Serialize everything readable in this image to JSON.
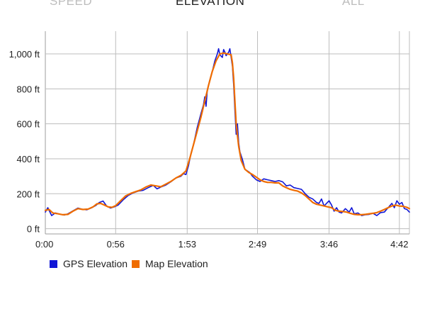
{
  "tabs": [
    {
      "label": "SPEED",
      "active": false
    },
    {
      "label": "ELEVATION",
      "active": true
    },
    {
      "label": "ALL",
      "active": false
    }
  ],
  "chart_data": {
    "type": "line",
    "title": "",
    "xlabel": "",
    "ylabel": "",
    "x_unit": "minutes",
    "xlim": [
      0,
      290
    ],
    "ylim": [
      -30,
      1130
    ],
    "x_ticks": [
      {
        "value": 0,
        "label": "0:00"
      },
      {
        "value": 56,
        "label": "0:56"
      },
      {
        "value": 113,
        "label": "1:53"
      },
      {
        "value": 169,
        "label": "2:49"
      },
      {
        "value": 226,
        "label": "3:46"
      },
      {
        "value": 282,
        "label": "4:42"
      }
    ],
    "y_ticks": [
      {
        "value": 0,
        "label": "0 ft"
      },
      {
        "value": 200,
        "label": "200 ft"
      },
      {
        "value": 400,
        "label": "400 ft"
      },
      {
        "value": 600,
        "label": "600 ft"
      },
      {
        "value": 800,
        "label": "800 ft"
      },
      {
        "value": 1000,
        "label": "1,000 ft"
      }
    ],
    "grid": true,
    "legend_position": "bottom-left",
    "series": [
      {
        "name": "GPS Elevation",
        "color": "#1016d6",
        "points": [
          [
            0,
            95
          ],
          [
            2,
            120
          ],
          [
            5,
            75
          ],
          [
            8,
            90
          ],
          [
            12,
            82
          ],
          [
            15,
            78
          ],
          [
            18,
            85
          ],
          [
            22,
            102
          ],
          [
            26,
            118
          ],
          [
            30,
            110
          ],
          [
            33,
            108
          ],
          [
            37,
            120
          ],
          [
            40,
            132
          ],
          [
            43,
            150
          ],
          [
            46,
            158
          ],
          [
            49,
            128
          ],
          [
            52,
            118
          ],
          [
            55,
            125
          ],
          [
            58,
            135
          ],
          [
            62,
            165
          ],
          [
            66,
            190
          ],
          [
            70,
            205
          ],
          [
            74,
            215
          ],
          [
            78,
            220
          ],
          [
            82,
            235
          ],
          [
            86,
            248
          ],
          [
            89,
            228
          ],
          [
            92,
            238
          ],
          [
            96,
            250
          ],
          [
            100,
            268
          ],
          [
            104,
            290
          ],
          [
            108,
            300
          ],
          [
            110,
            315
          ],
          [
            112,
            310
          ],
          [
            114,
            360
          ],
          [
            116,
            430
          ],
          [
            118,
            480
          ],
          [
            121,
            580
          ],
          [
            124,
            660
          ],
          [
            126,
            710
          ],
          [
            127,
            755
          ],
          [
            128,
            700
          ],
          [
            129,
            790
          ],
          [
            131,
            850
          ],
          [
            133,
            900
          ],
          [
            135,
            960
          ],
          [
            137,
            1000
          ],
          [
            138,
            1030
          ],
          [
            139,
            995
          ],
          [
            141,
            980
          ],
          [
            142,
            1025
          ],
          [
            143,
            1010
          ],
          [
            144,
            990
          ],
          [
            146,
            1010
          ],
          [
            147,
            1030
          ],
          [
            148,
            980
          ],
          [
            149,
            930
          ],
          [
            150,
            820
          ],
          [
            151,
            680
          ],
          [
            152,
            540
          ],
          [
            153,
            600
          ],
          [
            154,
            490
          ],
          [
            155,
            440
          ],
          [
            157,
            395
          ],
          [
            159,
            340
          ],
          [
            161,
            330
          ],
          [
            163,
            320
          ],
          [
            165,
            300
          ],
          [
            168,
            280
          ],
          [
            171,
            270
          ],
          [
            174,
            285
          ],
          [
            177,
            280
          ],
          [
            180,
            275
          ],
          [
            183,
            270
          ],
          [
            186,
            275
          ],
          [
            189,
            268
          ],
          [
            192,
            245
          ],
          [
            195,
            250
          ],
          [
            198,
            235
          ],
          [
            201,
            230
          ],
          [
            204,
            225
          ],
          [
            207,
            200
          ],
          [
            210,
            180
          ],
          [
            213,
            170
          ],
          [
            216,
            150
          ],
          [
            218,
            145
          ],
          [
            220,
            170
          ],
          [
            222,
            130
          ],
          [
            224,
            145
          ],
          [
            226,
            160
          ],
          [
            228,
            135
          ],
          [
            230,
            100
          ],
          [
            232,
            120
          ],
          [
            234,
            95
          ],
          [
            236,
            90
          ],
          [
            239,
            115
          ],
          [
            242,
            95
          ],
          [
            244,
            120
          ],
          [
            246,
            85
          ],
          [
            249,
            90
          ],
          [
            252,
            75
          ],
          [
            255,
            80
          ],
          [
            258,
            82
          ],
          [
            261,
            88
          ],
          [
            264,
            75
          ],
          [
            267,
            92
          ],
          [
            270,
            95
          ],
          [
            273,
            120
          ],
          [
            276,
            145
          ],
          [
            278,
            120
          ],
          [
            280,
            160
          ],
          [
            282,
            140
          ],
          [
            284,
            150
          ],
          [
            286,
            115
          ],
          [
            288,
            110
          ],
          [
            290,
            95
          ]
        ]
      },
      {
        "name": "Map Elevation",
        "color": "#ef6c00",
        "points": [
          [
            0,
            105
          ],
          [
            3,
            110
          ],
          [
            6,
            90
          ],
          [
            10,
            85
          ],
          [
            14,
            80
          ],
          [
            18,
            82
          ],
          [
            22,
            100
          ],
          [
            26,
            115
          ],
          [
            30,
            110
          ],
          [
            34,
            112
          ],
          [
            38,
            125
          ],
          [
            41,
            142
          ],
          [
            44,
            145
          ],
          [
            47,
            135
          ],
          [
            50,
            125
          ],
          [
            53,
            122
          ],
          [
            56,
            132
          ],
          [
            60,
            160
          ],
          [
            64,
            188
          ],
          [
            68,
            202
          ],
          [
            72,
            212
          ],
          [
            76,
            222
          ],
          [
            80,
            238
          ],
          [
            84,
            250
          ],
          [
            88,
            245
          ],
          [
            92,
            240
          ],
          [
            96,
            255
          ],
          [
            100,
            270
          ],
          [
            104,
            290
          ],
          [
            108,
            305
          ],
          [
            112,
            330
          ],
          [
            115,
            400
          ],
          [
            118,
            480
          ],
          [
            121,
            560
          ],
          [
            124,
            640
          ],
          [
            127,
            730
          ],
          [
            130,
            820
          ],
          [
            133,
            900
          ],
          [
            136,
            960
          ],
          [
            139,
            1000
          ],
          [
            142,
            1005
          ],
          [
            145,
            1000
          ],
          [
            148,
            995
          ],
          [
            149,
            950
          ],
          [
            150,
            860
          ],
          [
            151,
            730
          ],
          [
            152,
            600
          ],
          [
            154,
            470
          ],
          [
            156,
            390
          ],
          [
            159,
            340
          ],
          [
            162,
            322
          ],
          [
            165,
            310
          ],
          [
            168,
            295
          ],
          [
            171,
            280
          ],
          [
            174,
            270
          ],
          [
            177,
            265
          ],
          [
            180,
            265
          ],
          [
            183,
            262
          ],
          [
            186,
            262
          ],
          [
            189,
            245
          ],
          [
            192,
            235
          ],
          [
            195,
            225
          ],
          [
            198,
            220
          ],
          [
            201,
            215
          ],
          [
            204,
            205
          ],
          [
            207,
            190
          ],
          [
            210,
            170
          ],
          [
            213,
            150
          ],
          [
            216,
            140
          ],
          [
            219,
            135
          ],
          [
            222,
            130
          ],
          [
            225,
            125
          ],
          [
            228,
            120
          ],
          [
            231,
            105
          ],
          [
            234,
            100
          ],
          [
            237,
            98
          ],
          [
            240,
            95
          ],
          [
            243,
            88
          ],
          [
            246,
            82
          ],
          [
            249,
            80
          ],
          [
            252,
            80
          ],
          [
            255,
            82
          ],
          [
            258,
            85
          ],
          [
            261,
            88
          ],
          [
            264,
            92
          ],
          [
            267,
            100
          ],
          [
            270,
            110
          ],
          [
            273,
            120
          ],
          [
            276,
            130
          ],
          [
            279,
            135
          ],
          [
            282,
            130
          ],
          [
            285,
            128
          ],
          [
            288,
            122
          ],
          [
            290,
            115
          ]
        ]
      }
    ]
  }
}
